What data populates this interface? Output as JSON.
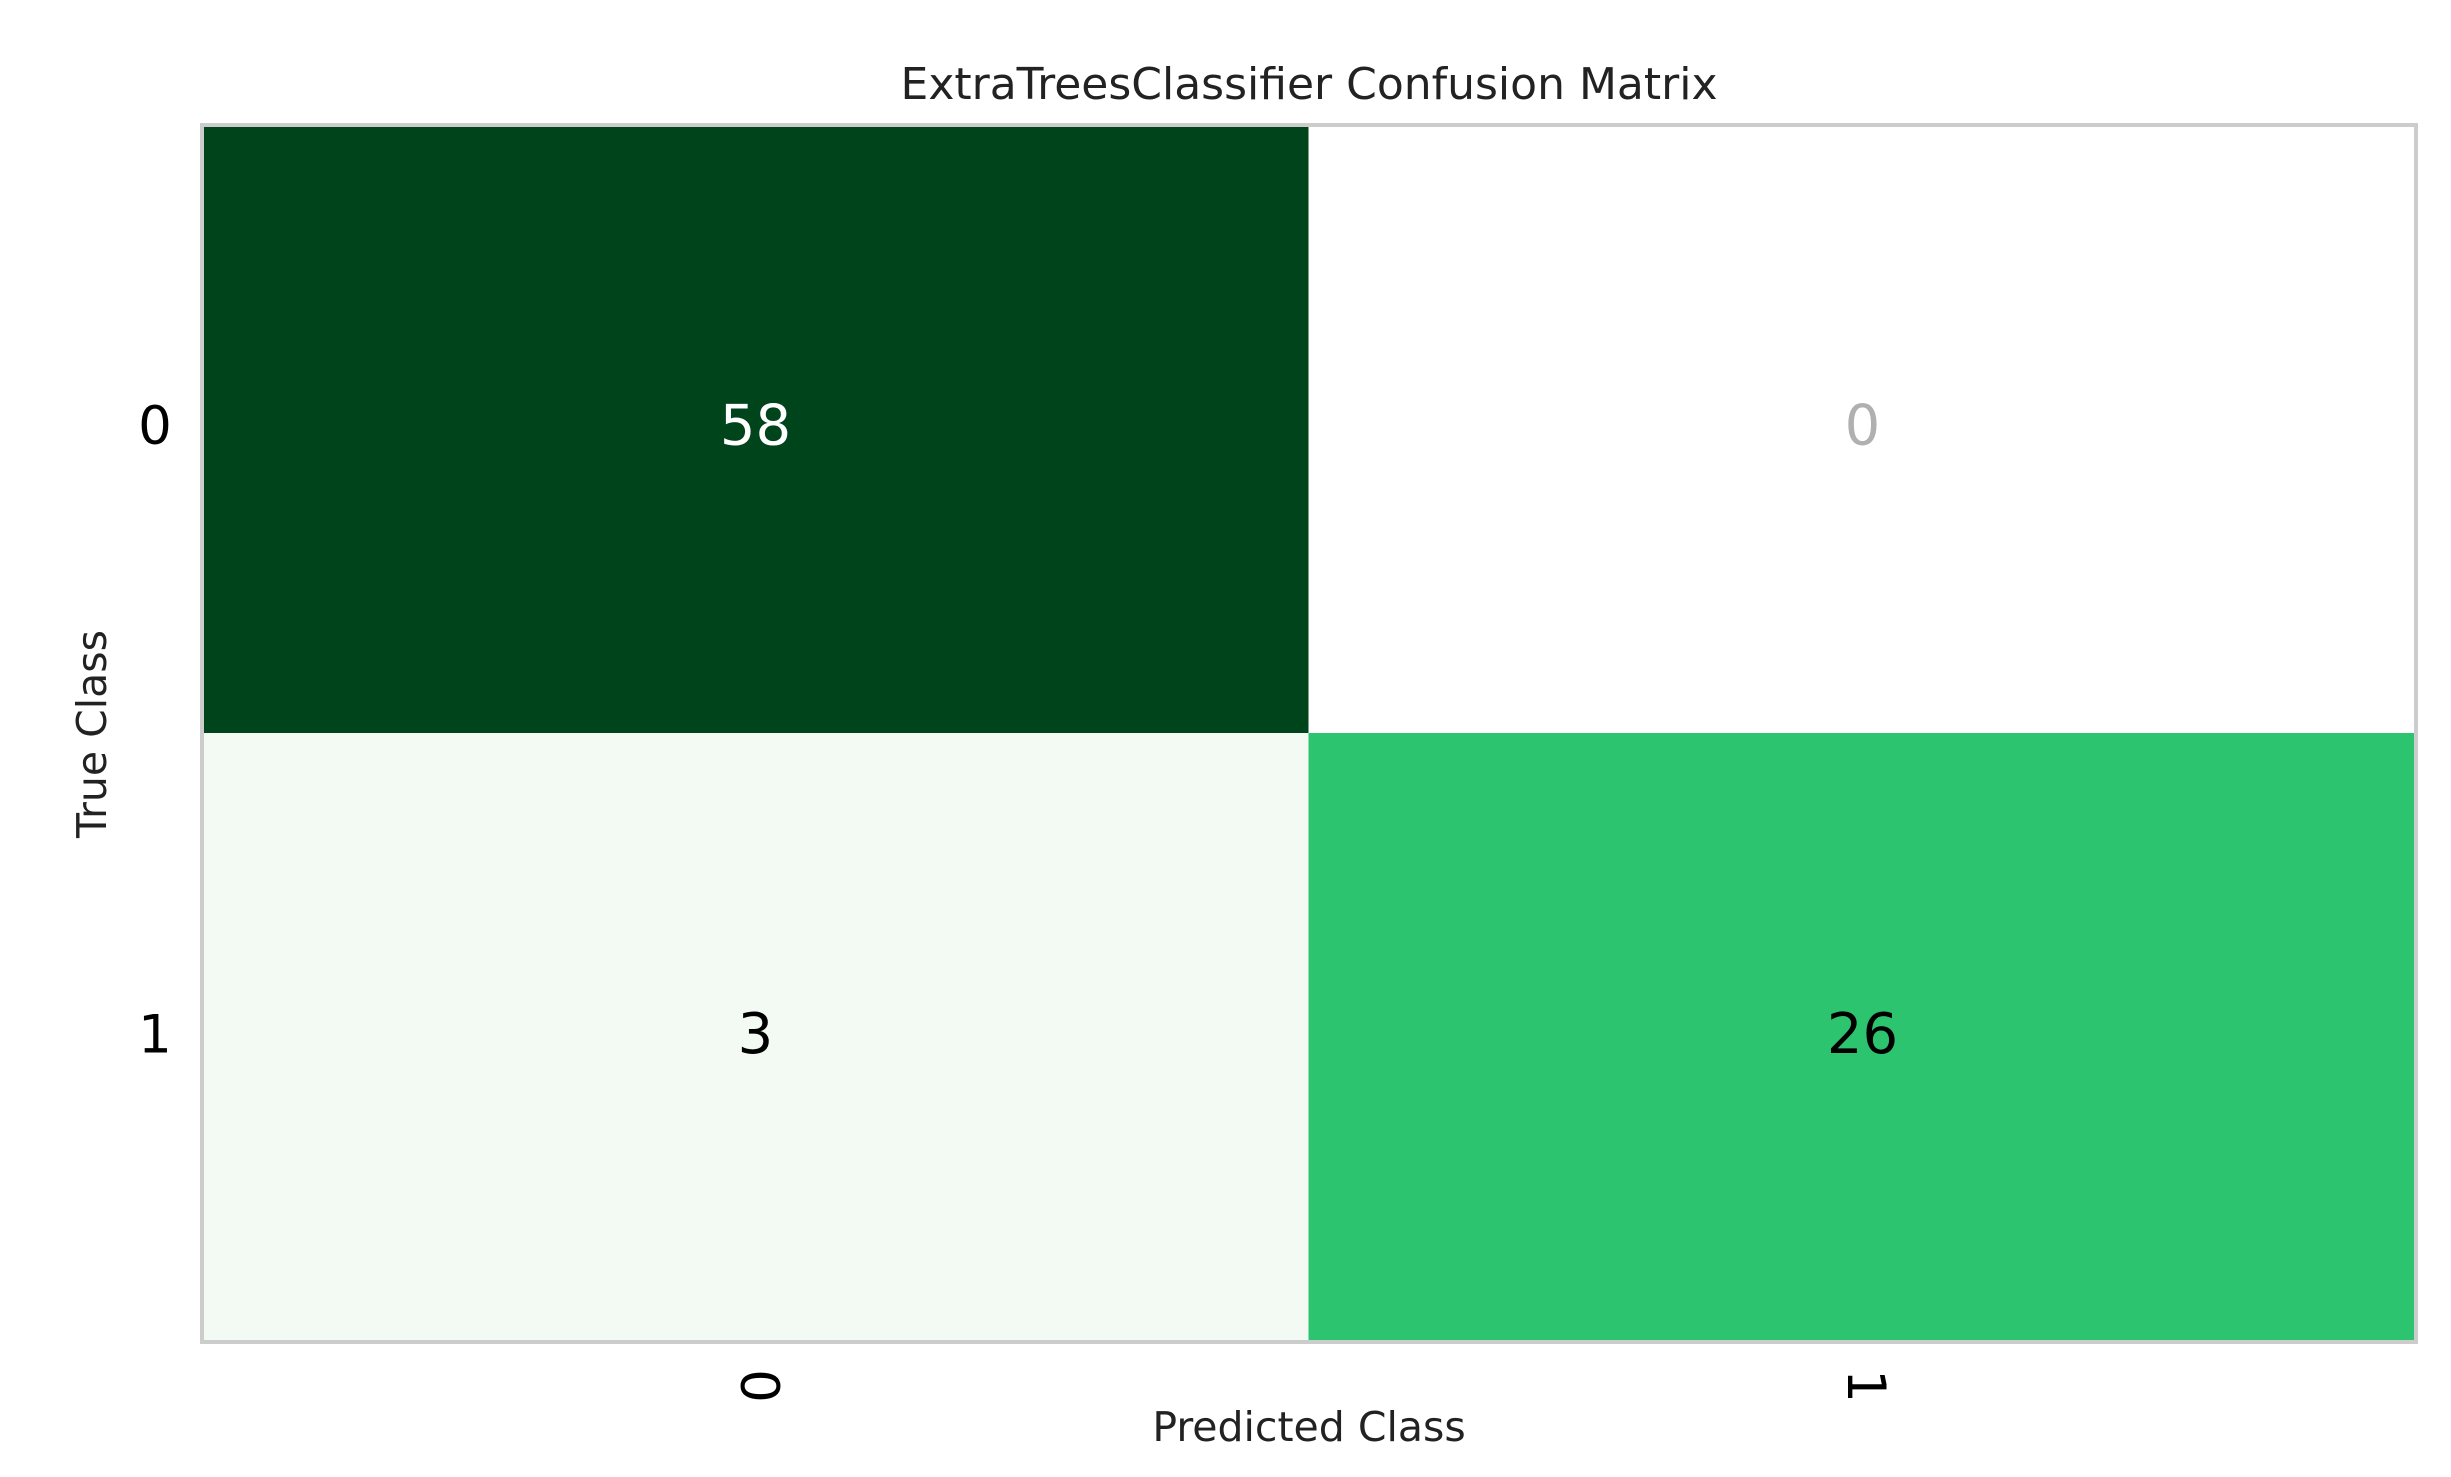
{
  "chart_data": {
    "type": "heatmap",
    "title": "ExtraTreesClassifier Confusion Matrix",
    "x_label": "Predicted Class",
    "y_label": "True Class",
    "x_categories": [
      "0",
      "1"
    ],
    "y_categories": [
      "0",
      "1"
    ],
    "values": [
      [
        58,
        0
      ],
      [
        3,
        26
      ]
    ],
    "colors": [
      [
        "#00441b",
        "#ffffff"
      ],
      [
        "#f2faf3",
        "#2dc46f"
      ]
    ],
    "text_colors": [
      [
        "#ffffff",
        "#b0b0b0"
      ],
      [
        "#000000",
        "#000000"
      ]
    ]
  }
}
